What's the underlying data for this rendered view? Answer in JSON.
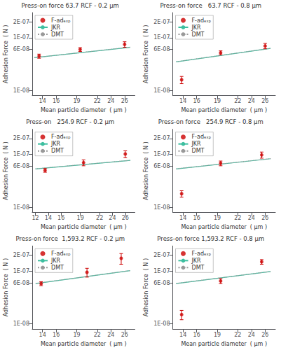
{
  "chart_data": [
    {
      "type": "scatter",
      "title": "Press-on force 63.7 RCF - 0.2 μm",
      "xlabel": "Mean particle diameter  ( μm )",
      "ylabel": "Adhesion Force  ( N )",
      "series": [
        {
          "name": "F-adₑₓₚ",
          "type": "scatter",
          "color": "#cc0000",
          "marker": "o",
          "x": [
            13.5,
            19.5,
            26.0
          ],
          "values": [
            4.5e-08,
            6e-08,
            7.5e-08
          ],
          "errors": [
            4e-09,
            5e-09,
            9e-09
          ]
        },
        {
          "name": "JKR",
          "type": "line",
          "color": "#3dbfa0",
          "line_style": "solid",
          "x": [
            12.8,
            26.8
          ],
          "values": [
            4.2e-08,
            6.6e-08
          ]
        },
        {
          "name": "DMT",
          "type": "line",
          "color": "#999999",
          "line_style": "dotted",
          "x": [
            12.8,
            26.8
          ],
          "values": [
            4.2e-08,
            6.65e-08
          ]
        }
      ],
      "xlim": [
        12.5,
        27.5
      ],
      "ylim": [
        8e-09,
        3e-07
      ],
      "xticks": [
        14,
        16,
        19,
        22,
        24,
        26
      ],
      "yticks": [
        {
          "value": 1e-08,
          "label": "1E-08"
        },
        {
          "value": 6e-08,
          "label": "6E-08"
        },
        {
          "value": 1e-07,
          "label": "1E-07"
        },
        {
          "value": 2e-07,
          "label": "2E-07"
        }
      ],
      "log": "y",
      "grid": false,
      "legend": "upper left"
    },
    {
      "type": "scatter",
      "title": "Press-on force   63.7 RCF - 0.8 μm",
      "xlabel": "Mean particle diameter  ( μm )",
      "ylabel": "Adhesion Force  ( N )",
      "series": [
        {
          "name": "F-adₑₓₚ",
          "type": "scatter",
          "color": "#cc0000",
          "marker": "o",
          "x": [
            13.8,
            19.5,
            26.0
          ],
          "values": [
            1.6e-08,
            5.2e-08,
            7e-08
          ],
          "errors": [
            2.5e-09,
            4.5e-09,
            8e-09
          ]
        },
        {
          "name": "JKR",
          "type": "line",
          "color": "#3dbfa0",
          "line_style": "solid",
          "x": [
            13.0,
            26.8
          ],
          "values": [
            3.5e-08,
            6.3e-08
          ]
        },
        {
          "name": "DMT",
          "type": "line",
          "color": "#999999",
          "line_style": "dotted",
          "x": [
            13.0,
            26.8
          ],
          "values": [
            3.52e-08,
            6.32e-08
          ]
        }
      ],
      "xlim": [
        12.5,
        27.5
      ],
      "ylim": [
        8e-09,
        3e-07
      ],
      "xticks": [
        14,
        16,
        19,
        22,
        24,
        26
      ],
      "yticks": [
        {
          "value": 1e-08,
          "label": "1E-08"
        },
        {
          "value": 6e-08,
          "label": "6E-08"
        },
        {
          "value": 1e-07,
          "label": "1E-07"
        },
        {
          "value": 2e-07,
          "label": "2E-07"
        }
      ],
      "log": "y",
      "grid": false,
      "legend": "upper left"
    },
    {
      "type": "scatter",
      "title": "Press-on   254.9 RCF - 0.2 μm",
      "xlabel": "Mean particle diameter  ( μm )",
      "ylabel": "Adhesion Force  ( N )",
      "series": [
        {
          "name": "F-adₑₓₚ",
          "type": "scatter",
          "color": "#cc0000",
          "marker": "o",
          "x": [
            13.5,
            19.5,
            26.0
          ],
          "values": [
            5e-08,
            7e-08,
            1.02e-07
          ],
          "errors": [
            4e-09,
            9e-09,
            1.5e-08
          ]
        },
        {
          "name": "JKR",
          "type": "line",
          "color": "#3dbfa0",
          "line_style": "solid",
          "x": [
            12.0,
            26.8
          ],
          "values": [
            5.3e-08,
            7.7e-08
          ]
        },
        {
          "name": "DMT",
          "type": "line",
          "color": "#999999",
          "line_style": "dotted",
          "x": [
            12.0,
            26.8
          ],
          "values": [
            5.35e-08,
            7.75e-08
          ]
        }
      ],
      "xlim": [
        11.5,
        27.5
      ],
      "ylim": [
        8e-09,
        3e-07
      ],
      "xticks": [
        12,
        14,
        16,
        19,
        22,
        24,
        26
      ],
      "yticks": [
        {
          "value": 1e-08,
          "label": "1E-08"
        },
        {
          "value": 6e-08,
          "label": "6E-08"
        },
        {
          "value": 1e-07,
          "label": "1E-07"
        },
        {
          "value": 2e-07,
          "label": "2E-07"
        }
      ],
      "log": "y",
      "grid": false,
      "legend": "upper left"
    },
    {
      "type": "scatter",
      "title": "Press-on force   254.9 RCF - 0.8 μm",
      "xlabel": "Mean particle diameter  ( μm )",
      "ylabel": "Adhesion Force  ( N )",
      "series": [
        {
          "name": "F-adₑₓₚ",
          "type": "scatter",
          "color": "#cc0000",
          "marker": "o",
          "x": [
            13.8,
            19.5,
            25.5
          ],
          "values": [
            1.8e-08,
            6.8e-08,
            9.8e-08
          ],
          "errors": [
            2.5e-09,
            7e-09,
            1.3e-08
          ]
        },
        {
          "name": "JKR",
          "type": "line",
          "color": "#3dbfa0",
          "line_style": "solid",
          "x": [
            13.0,
            26.8
          ],
          "values": [
            5.3e-08,
            8.3e-08
          ]
        },
        {
          "name": "DMT",
          "type": "line",
          "color": "#999999",
          "line_style": "dotted",
          "x": [
            13.0,
            26.8
          ],
          "values": [
            5.35e-08,
            8.35e-08
          ]
        }
      ],
      "xlim": [
        12.5,
        27.5
      ],
      "ylim": [
        8e-09,
        3e-07
      ],
      "xticks": [
        14,
        16,
        19,
        22,
        24,
        26
      ],
      "yticks": [
        {
          "value": 1e-08,
          "label": "1E-08"
        },
        {
          "value": 6e-08,
          "label": "6E-08"
        },
        {
          "value": 1e-07,
          "label": "1E-07"
        },
        {
          "value": 2e-07,
          "label": "2E-07"
        }
      ],
      "log": "y",
      "grid": false,
      "legend": "upper left"
    },
    {
      "type": "scatter",
      "title": "Press-on force  1,593.2 RCF - 0.2 μm",
      "xlabel": "Mean particle diameter  ( μm )",
      "ylabel": "Adhesion Force  ( N )",
      "series": [
        {
          "name": "F-adₑₓₚ",
          "type": "scatter",
          "color": "#cc0000",
          "marker": "o",
          "x": [
            13.8,
            20.5,
            25.5
          ],
          "values": [
            5.8e-08,
            9.5e-08,
            1.75e-07
          ],
          "errors": [
            5e-09,
            1.8e-08,
            4e-08
          ]
        },
        {
          "name": "JKR",
          "type": "line",
          "color": "#3dbfa0",
          "line_style": "solid",
          "x": [
            13.0,
            26.8
          ],
          "values": [
            5.8e-08,
            1.02e-07
          ]
        },
        {
          "name": "DMT",
          "type": "line",
          "color": "#999999",
          "line_style": "dotted",
          "x": [
            13.0,
            26.8
          ],
          "values": [
            5.85e-08,
            1.025e-07
          ]
        }
      ],
      "xlim": [
        12.5,
        27.5
      ],
      "ylim": [
        8e-09,
        3e-07
      ],
      "xticks": [
        14,
        16,
        19,
        22,
        24,
        26
      ],
      "yticks": [
        {
          "value": 1e-08,
          "label": "1E-08"
        },
        {
          "value": 6e-08,
          "label": "6E-08"
        },
        {
          "value": 1e-07,
          "label": "1E-07"
        },
        {
          "value": 2e-07,
          "label": "2E-07"
        }
      ],
      "log": "y",
      "grid": false,
      "legend": "upper left"
    },
    {
      "type": "scatter",
      "title": "Press-on force 1,593.2 RCF - 0.8 μm",
      "xlabel": "Mean particle diameter  ( μm )",
      "ylabel": "Adhesion Force  ( N )",
      "series": [
        {
          "name": "F-adₑₓₚ",
          "type": "scatter",
          "color": "#cc0000",
          "marker": "o",
          "x": [
            13.8,
            19.5,
            25.5
          ],
          "values": [
            1.5e-08,
            6.5e-08,
            1.5e-07
          ],
          "errors": [
            3e-09,
            7e-09,
            1.5e-08
          ]
        },
        {
          "name": "JKR",
          "type": "line",
          "color": "#3dbfa0",
          "line_style": "solid",
          "x": [
            13.0,
            26.8
          ],
          "values": [
            5.8e-08,
            9.8e-08
          ]
        },
        {
          "name": "DMT",
          "type": "line",
          "color": "#999999",
          "line_style": "dotted",
          "x": [
            13.0,
            26.8
          ],
          "values": [
            5.85e-08,
            9.85e-08
          ]
        }
      ],
      "xlim": [
        12.5,
        27.5
      ],
      "ylim": [
        8e-09,
        3e-07
      ],
      "xticks": [
        14,
        16,
        19,
        22,
        24,
        26
      ],
      "yticks": [
        {
          "value": 1e-08,
          "label": "1E-08"
        },
        {
          "value": 6e-08,
          "label": "6E-08"
        },
        {
          "value": 1e-07,
          "label": "1E-07"
        },
        {
          "value": 2e-07,
          "label": "2E-07"
        }
      ],
      "log": "y",
      "grid": false,
      "legend": "upper left"
    }
  ]
}
